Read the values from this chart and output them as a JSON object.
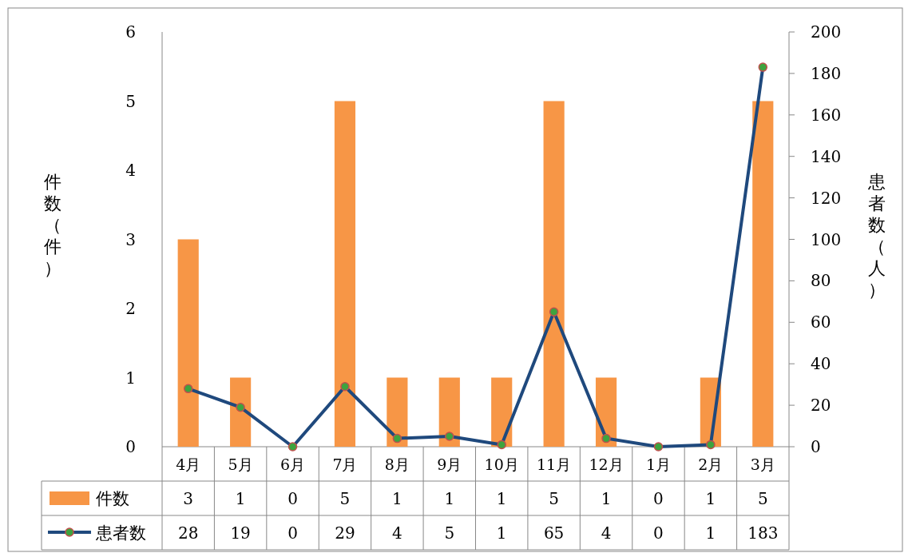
{
  "chart_data": {
    "type": "bar",
    "categories": [
      "4月",
      "5月",
      "6月",
      "7月",
      "8月",
      "9月",
      "10月",
      "11月",
      "12月",
      "1月",
      "2月",
      "3月"
    ],
    "series": [
      {
        "name": "件数",
        "color": "#f79646",
        "values": [
          3,
          1,
          0,
          5,
          1,
          1,
          1,
          5,
          1,
          0,
          1,
          5
        ]
      },
      {
        "name": "患者数",
        "type": "line",
        "axis": "y2",
        "color": "#1f497d",
        "marker": "circle",
        "values": [
          28,
          19,
          0,
          29,
          4,
          5,
          1,
          65,
          4,
          0,
          1,
          183
        ]
      }
    ],
    "ylabel": "件数（件）",
    "y2label": "患者数（人）",
    "ylim": [
      0,
      6
    ],
    "yticks": [
      0,
      1,
      2,
      3,
      4,
      5,
      6
    ],
    "y2lim": [
      0,
      200
    ],
    "y2ticks": [
      0,
      20,
      40,
      60,
      80,
      100,
      120,
      140,
      160,
      180,
      200
    ],
    "data_labels": true,
    "legend": "bottom left",
    "grid": false
  }
}
